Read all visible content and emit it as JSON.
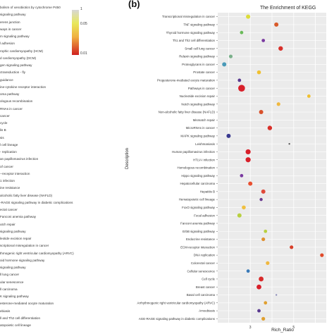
{
  "panel_label": "(b)",
  "left_panel": {
    "rows": [
      "bolism of xenobiotics by cytochrome P450",
      "signaling pathway",
      "erens junction",
      "ways in cancer",
      "m signaling pathway",
      "l adhesion",
      "rophic cardiomyopathy (HCM)",
      "d cardiomyopathy (DCM)",
      "gen signaling pathway",
      "ctransduction - fly",
      "guidance",
      "ine-cytokine receptor interaction",
      "oma pathway",
      "ologous recombination",
      "RNAs in cancer",
      "cancer",
      "cycle",
      "lis B",
      "sis",
      "l cell lineage",
      "- replication",
      "an papillomavirus infection",
      "of cancer",
      "--receptor interaction",
      "1 infection",
      "ine resistance",
      "alcoholic fatty liver disease (NAFLD)",
      "-RAGE signaling pathway in diabetic complications",
      "ectal cancer",
      "Fanconi anemia pathway",
      "utch repair",
      "signaling pathway",
      "leotide excision repair",
      "scriptional misregulation in cancer",
      "thmogenic right ventricular cardiomyopathy (ARVC)",
      "oid hormone signaling pathway",
      "signaling pathway",
      "ll lung cancer",
      "ular senescence",
      "ll carcinoma",
      "K signaling pathway",
      "esterone-mediated oocyte maturation",
      "ebiasis",
      "ll and Th2 cell differentiation",
      "atopoietic cell lineage"
    ],
    "colorbar_ticks": [
      "1",
      "0.05",
      "0.01"
    ]
  },
  "chart_data": {
    "type": "scatter",
    "title": "The Enrichment of KEGG",
    "xlabel": "Rich_Ratio",
    "ylabel": "Description",
    "x_ticks": [
      "3",
      "5"
    ],
    "xlim": [
      1.5,
      6.5
    ],
    "grid": true,
    "categories": [
      "Transcriptional misregulation in cancer",
      "TNF signaling pathway",
      "Thyroid hormone signaling pathway",
      "Th1 and Th2 cell differentiation",
      "Small cell lung cancer",
      "Relaxin signaling pathway",
      "Proteoglycans in cancer",
      "Prostate cancer",
      "Progesterone-mediated oocyte maturation",
      "Pathways in cancer",
      "Nucleotide excision repair",
      "Notch signaling pathway",
      "Non-alcoholic fatty liver disease (NAFLD)",
      "Mismatch repair",
      "MicroRNAs in cancer",
      "MAPK signaling pathway",
      "Leishmaniasis",
      "Human papillomavirus infection",
      "HTLV-I infection",
      "Homologous recombination",
      "Hippo signaling pathway",
      "Hepatocellular carcinoma",
      "Hepatitis B",
      "Hematopoietic cell lineage",
      "FoxO signaling pathway",
      "Focal adhesion",
      "Fanconi anemia pathway",
      "ErbB signaling pathway",
      "Endocrine resistance",
      "ECM-receptor interaction",
      "DNA replication",
      "Colorectal cancer",
      "Cellular senescence",
      "Cell cycle",
      "Breast cancer",
      "Basal cell carcinoma",
      "Arrhythmogenic right ventricular cardiomyopathy (ARVC)",
      "Amoebiasis",
      "AGE-RAGE signaling pathway in diabetic complications"
    ],
    "points": [
      {
        "x": 2.9,
        "size": 3.0,
        "color": "#dcdc3a"
      },
      {
        "x": 4.2,
        "size": 3.0,
        "color": "#d85a2a"
      },
      {
        "x": 2.6,
        "size": 2.4,
        "color": "#6aba5a"
      },
      {
        "x": 3.6,
        "size": 2.4,
        "color": "#7a3aa0"
      },
      {
        "x": 4.4,
        "size": 3.2,
        "color": "#d8302a"
      },
      {
        "x": 2.1,
        "size": 2.6,
        "color": "#7ab08a"
      },
      {
        "x": 1.8,
        "size": 3.0,
        "color": "#4a9ab8"
      },
      {
        "x": 3.4,
        "size": 2.8,
        "color": "#f0c030"
      },
      {
        "x": 2.5,
        "size": 2.4,
        "color": "#5a3a90"
      },
      {
        "x": 2.6,
        "size": 4.8,
        "color": "#d8202a"
      },
      {
        "x": 5.7,
        "size": 2.4,
        "color": "#f0c030"
      },
      {
        "x": 4.3,
        "size": 2.6,
        "color": "#f0b840"
      },
      {
        "x": 3.5,
        "size": 3.0,
        "color": "#d8502a"
      },
      {
        "x": 0,
        "size": 0,
        "color": "#ffffff"
      },
      {
        "x": 3.9,
        "size": 3.2,
        "color": "#d8302a"
      },
      {
        "x": 2.0,
        "size": 3.0,
        "color": "#3a3a90"
      },
      {
        "x": 4.8,
        "size": 1.2,
        "color": "#5a5a5a"
      },
      {
        "x": 2.9,
        "size": 3.6,
        "color": "#d8202a"
      },
      {
        "x": 2.9,
        "size": 3.6,
        "color": "#d8202a"
      },
      {
        "x": 0,
        "size": 0,
        "color": "#ffffff"
      },
      {
        "x": 2.6,
        "size": 2.4,
        "color": "#7a3aa0"
      },
      {
        "x": 3.0,
        "size": 3.0,
        "color": "#e85030"
      },
      {
        "x": 3.6,
        "size": 3.0,
        "color": "#e04a3a"
      },
      {
        "x": 3.5,
        "size": 2.2,
        "color": "#6a3a90"
      },
      {
        "x": 2.7,
        "size": 2.8,
        "color": "#f0c040"
      },
      {
        "x": 2.5,
        "size": 3.0,
        "color": "#b8d040"
      },
      {
        "x": 0,
        "size": 0,
        "color": "#ffffff"
      },
      {
        "x": 3.7,
        "size": 2.4,
        "color": "#b8d040"
      },
      {
        "x": 3.6,
        "size": 2.6,
        "color": "#e09030"
      },
      {
        "x": 4.9,
        "size": 2.6,
        "color": "#d8402a"
      },
      {
        "x": 6.3,
        "size": 2.6,
        "color": "#e04a2a"
      },
      {
        "x": 3.8,
        "size": 2.6,
        "color": "#f0b840"
      },
      {
        "x": 2.9,
        "size": 2.4,
        "color": "#3a7ab8"
      },
      {
        "x": 3.5,
        "size": 3.4,
        "color": "#d82a2a"
      },
      {
        "x": 3.4,
        "size": 3.4,
        "color": "#d8202a"
      },
      {
        "x": 4.2,
        "size": 1.2,
        "color": "#8a8ab8"
      },
      {
        "x": 3.7,
        "size": 2.4,
        "color": "#e0a030"
      },
      {
        "x": 3.4,
        "size": 2.4,
        "color": "#5a3a90"
      },
      {
        "x": 3.6,
        "size": 2.6,
        "color": "#e0a030"
      }
    ]
  }
}
